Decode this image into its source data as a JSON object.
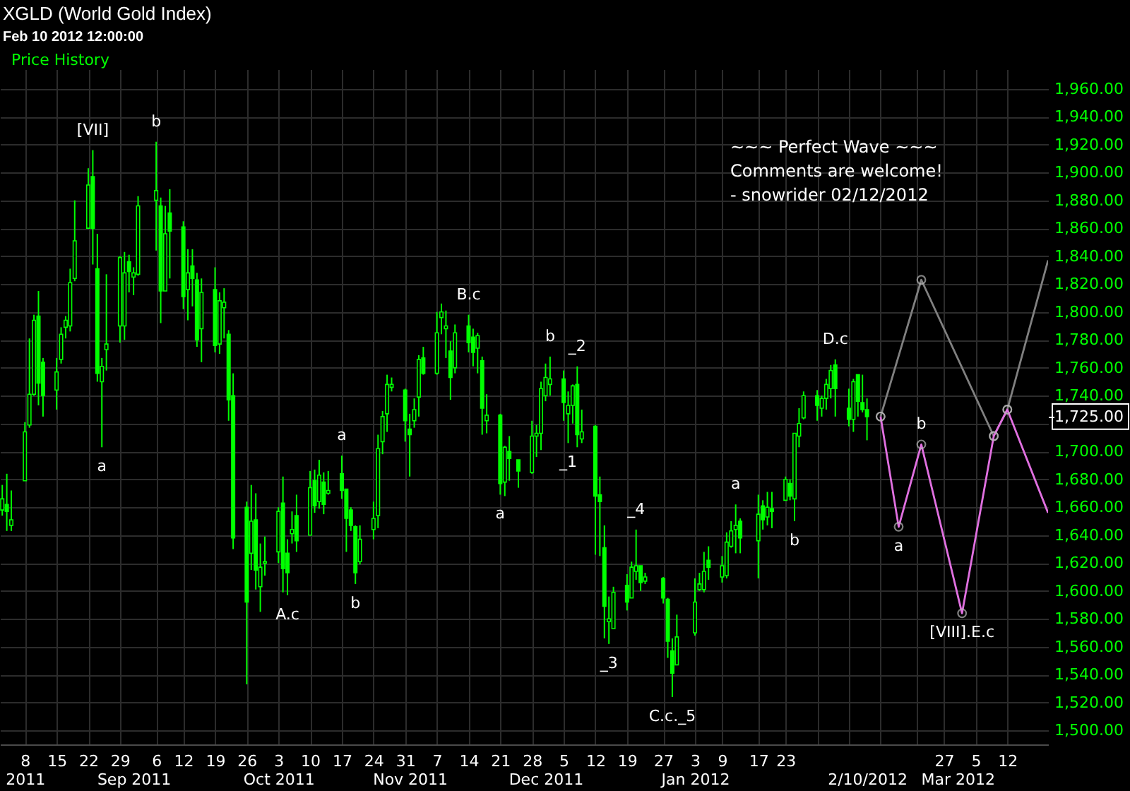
{
  "chart_data": {
    "type": "candlestick",
    "title": "XGLD (World Gold Index)",
    "subtitle": "Feb 10 2012 12:00:00",
    "x": [
      "2011-08-03",
      "2011-08-04",
      "2011-08-05",
      "2011-08-08",
      "2011-08-09",
      "2011-08-10",
      "2011-08-11",
      "2011-08-12",
      "2011-08-15",
      "2011-08-16",
      "2011-08-17",
      "2011-08-18",
      "2011-08-19",
      "2011-08-22",
      "2011-08-23",
      "2011-08-24",
      "2011-08-25",
      "2011-08-26",
      "2011-08-29",
      "2011-08-30",
      "2011-08-31",
      "2011-09-01",
      "2011-09-02",
      "2011-09-06",
      "2011-09-07",
      "2011-09-08",
      "2011-09-09",
      "2011-09-12",
      "2011-09-13",
      "2011-09-14",
      "2011-09-15",
      "2011-09-16",
      "2011-09-19",
      "2011-09-20",
      "2011-09-21",
      "2011-09-22",
      "2011-09-23",
      "2011-09-26",
      "2011-09-27",
      "2011-09-28",
      "2011-09-29",
      "2011-09-30",
      "2011-10-03",
      "2011-10-04",
      "2011-10-05",
      "2011-10-06",
      "2011-10-07",
      "2011-10-10",
      "2011-10-11",
      "2011-10-12",
      "2011-10-13",
      "2011-10-14",
      "2011-10-17",
      "2011-10-18",
      "2011-10-19",
      "2011-10-20",
      "2011-10-21",
      "2011-10-24",
      "2011-10-25",
      "2011-10-26",
      "2011-10-27",
      "2011-10-28",
      "2011-10-31",
      "2011-11-01",
      "2011-11-02",
      "2011-11-03",
      "2011-11-04",
      "2011-11-07",
      "2011-11-08",
      "2011-11-09",
      "2011-11-10",
      "2011-11-11",
      "2011-11-14",
      "2011-11-15",
      "2011-11-16",
      "2011-11-17",
      "2011-11-18",
      "2011-11-21",
      "2011-11-22",
      "2011-11-23",
      "2011-11-25",
      "2011-11-28",
      "2011-11-29",
      "2011-11-30",
      "2011-12-01",
      "2011-12-02",
      "2011-12-05",
      "2011-12-06",
      "2011-12-07",
      "2011-12-08",
      "2011-12-09",
      "2011-12-12",
      "2011-12-13",
      "2011-12-14",
      "2011-12-15",
      "2011-12-16",
      "2011-12-19",
      "2011-12-20",
      "2011-12-21",
      "2011-12-22",
      "2011-12-23",
      "2011-12-27",
      "2011-12-28",
      "2011-12-29",
      "2011-12-30",
      "2012-01-03",
      "2012-01-04",
      "2012-01-05",
      "2012-01-06",
      "2012-01-09",
      "2012-01-10",
      "2012-01-11",
      "2012-01-12",
      "2012-01-13",
      "2012-01-17",
      "2012-01-18",
      "2012-01-19",
      "2012-01-20",
      "2012-01-23",
      "2012-01-24",
      "2012-01-25",
      "2012-01-26",
      "2012-01-27",
      "2012-01-30",
      "2012-01-31",
      "2012-02-01",
      "2012-02-02",
      "2012-02-03",
      "2012-02-06",
      "2012-02-07",
      "2012-02-08",
      "2012-02-09",
      "2012-02-10"
    ],
    "series": [
      {
        "name": "Price History",
        "color": "#00ff00",
        "ohlc": [
          [
            1658,
            1676,
            1654,
            1666
          ],
          [
            1662,
            1684,
            1643,
            1657
          ],
          [
            1647,
            1672,
            1643,
            1651
          ],
          [
            1679,
            1721,
            1679,
            1714
          ],
          [
            1719,
            1781,
            1717,
            1741
          ],
          [
            1741,
            1798,
            1740,
            1794
          ],
          [
            1797,
            1815,
            1733,
            1749
          ],
          [
            1764,
            1767,
            1725,
            1740
          ],
          [
            1744,
            1767,
            1730,
            1757
          ],
          [
            1766,
            1789,
            1763,
            1784
          ],
          [
            1789,
            1797,
            1781,
            1794
          ],
          [
            1790,
            1831,
            1786,
            1821
          ],
          [
            1824,
            1880,
            1822,
            1851
          ],
          [
            1860,
            1903,
            1860,
            1891
          ],
          [
            1897,
            1916,
            1834,
            1860
          ],
          [
            1831,
            1856,
            1750,
            1756
          ],
          [
            1750,
            1767,
            1703,
            1761
          ],
          [
            1773,
            1827,
            1758,
            1777
          ],
          [
            1790,
            1840,
            1778,
            1839
          ],
          [
            1790,
            1843,
            1780,
            1828
          ],
          [
            1836,
            1841,
            1814,
            1829
          ],
          [
            1825,
            1832,
            1812,
            1828
          ],
          [
            1827,
            1883,
            1826,
            1876
          ],
          [
            1880,
            1922,
            1844,
            1887
          ],
          [
            1876,
            1882,
            1792,
            1815
          ],
          [
            1815,
            1876,
            1815,
            1856
          ],
          [
            1871,
            1888,
            1824,
            1858
          ],
          [
            1861,
            1865,
            1802,
            1811
          ],
          [
            1816,
            1845,
            1794,
            1828
          ],
          [
            1833,
            1845,
            1804,
            1824
          ],
          [
            1823,
            1828,
            1775,
            1780
          ],
          [
            1788,
            1824,
            1764,
            1814
          ],
          [
            1816,
            1832,
            1771,
            1776
          ],
          [
            1777,
            1814,
            1770,
            1808
          ],
          [
            1803,
            1817,
            1781,
            1807
          ],
          [
            1784,
            1787,
            1722,
            1737
          ],
          [
            1740,
            1756,
            1630,
            1638
          ],
          [
            1660,
            1664,
            1533,
            1592
          ],
          [
            1627,
            1676,
            1615,
            1650
          ],
          [
            1651,
            1670,
            1601,
            1615
          ],
          [
            1603,
            1634,
            1585,
            1617
          ],
          [
            1620,
            1639,
            1611,
            1621
          ],
          [
            1628,
            1660,
            1620,
            1657
          ],
          [
            1663,
            1682,
            1599,
            1616
          ],
          [
            1627,
            1637,
            1597,
            1613
          ],
          [
            1641,
            1657,
            1634,
            1644
          ],
          [
            1654,
            1669,
            1628,
            1636
          ],
          [
            1640,
            1686,
            1640,
            1674
          ],
          [
            1679,
            1687,
            1656,
            1661
          ],
          [
            1664,
            1694,
            1659,
            1683
          ],
          [
            1678,
            1685,
            1655,
            1662
          ],
          [
            1670,
            1686,
            1669,
            1672
          ],
          [
            1684,
            1697,
            1666,
            1672
          ],
          [
            1673,
            1673,
            1628,
            1652
          ],
          [
            1658,
            1660,
            1643,
            1647
          ],
          [
            1646,
            1647,
            1605,
            1613
          ],
          [
            1621,
            1647,
            1619,
            1637
          ],
          [
            1644,
            1664,
            1637,
            1652
          ],
          [
            1654,
            1712,
            1645,
            1702
          ],
          [
            1707,
            1729,
            1698,
            1725
          ],
          [
            1727,
            1755,
            1714,
            1748
          ],
          [
            1746,
            1753,
            1743,
            1748
          ],
          [
            1744,
            1745,
            1707,
            1722
          ],
          [
            1716,
            1727,
            1682,
            1712
          ],
          [
            1722,
            1738,
            1717,
            1730
          ],
          [
            1739,
            1769,
            1725,
            1766
          ],
          [
            1767,
            1775,
            1755,
            1756
          ],
          [
            1756,
            1800,
            1755,
            1785
          ],
          [
            1796,
            1806,
            1784,
            1800
          ],
          [
            1788,
            1801,
            1767,
            1790
          ],
          [
            1772,
            1779,
            1737,
            1753
          ],
          [
            1760,
            1791,
            1756,
            1785
          ],
          [
            1790,
            1798,
            1771,
            1778
          ],
          [
            1782,
            1788,
            1761,
            1771
          ],
          [
            1774,
            1785,
            1756,
            1783
          ],
          [
            1765,
            1768,
            1712,
            1731
          ],
          [
            1722,
            1741,
            1713,
            1726
          ],
          [
            1726,
            1727,
            1669,
            1677
          ],
          [
            1678,
            1704,
            1668,
            1703
          ],
          [
            1700,
            1711,
            1679,
            1695
          ],
          [
            1694,
            1694,
            1674,
            1686
          ],
          [
            1685,
            1722,
            1684,
            1711
          ],
          [
            1711,
            1719,
            1696,
            1713
          ],
          [
            1713,
            1750,
            1701,
            1745
          ],
          [
            1740,
            1763,
            1736,
            1753
          ],
          [
            1748,
            1768,
            1740,
            1752
          ],
          [
            1752,
            1758,
            1722,
            1735
          ],
          [
            1727,
            1743,
            1706,
            1733
          ],
          [
            1733,
            1748,
            1720,
            1747
          ],
          [
            1748,
            1761,
            1703,
            1712
          ],
          [
            1709,
            1730,
            1706,
            1714
          ],
          [
            1718,
            1719,
            1626,
            1668
          ],
          [
            1669,
            1682,
            1625,
            1664
          ],
          [
            1631,
            1647,
            1566,
            1589
          ],
          [
            1578,
            1596,
            1562,
            1580
          ],
          [
            1573,
            1603,
            1573,
            1599
          ],
          [
            1604,
            1612,
            1586,
            1592
          ],
          [
            1595,
            1621,
            1595,
            1617
          ],
          [
            1614,
            1644,
            1608,
            1618
          ],
          [
            1618,
            1618,
            1600,
            1606
          ],
          [
            1607,
            1613,
            1605,
            1610
          ],
          [
            1609,
            1610,
            1591,
            1595
          ],
          [
            1594,
            1595,
            1552,
            1564
          ],
          [
            1557,
            1566,
            1524,
            1541
          ],
          [
            1547,
            1583,
            1547,
            1567
          ],
          [
            1570,
            1609,
            1568,
            1592
          ],
          [
            1601,
            1613,
            1600,
            1605
          ],
          [
            1601,
            1628,
            1599,
            1614
          ],
          [
            1622,
            1632,
            1608,
            1617
          ],
          [
            1610,
            1625,
            1606,
            1618
          ],
          [
            1611,
            1642,
            1609,
            1635
          ],
          [
            1632,
            1650,
            1631,
            1643
          ],
          [
            1644,
            1662,
            1627,
            1647
          ],
          [
            1650,
            1652,
            1627,
            1638
          ],
          [
            1636,
            1669,
            1609,
            1655
          ],
          [
            1661,
            1665,
            1644,
            1651
          ],
          [
            1653,
            1671,
            1647,
            1660
          ],
          [
            1659,
            1671,
            1645,
            1657
          ],
          [
            1665,
            1682,
            1665,
            1680
          ],
          [
            1677,
            1680,
            1665,
            1668
          ],
          [
            1666,
            1713,
            1650,
            1713
          ],
          [
            1711,
            1731,
            1703,
            1720
          ],
          [
            1724,
            1743,
            1723,
            1740
          ],
          [
            1740,
            1744,
            1722,
            1733
          ],
          [
            1731,
            1740,
            1725,
            1738
          ],
          [
            1738,
            1752,
            1730,
            1748
          ],
          [
            1745,
            1762,
            1738,
            1758
          ],
          [
            1762,
            1766,
            1725,
            1745
          ],
          [
            1731,
            1745,
            1718,
            1723
          ],
          [
            1723,
            1752,
            1714,
            1750
          ],
          [
            1755,
            1755,
            1725,
            1736
          ],
          [
            1735,
            1755,
            1728,
            1730
          ],
          [
            1730,
            1738,
            1708,
            1725
          ]
        ]
      },
      {
        "type": "line",
        "color": "#808080",
        "marker": "circle",
        "x": [
          "2012-02-13",
          "2012-02-22",
          "2012-03-09",
          "2012-03-12",
          "2012-03-21"
        ],
        "values": [
          1725,
          1823,
          1711,
          1730,
          1837
        ]
      },
      {
        "type": "line",
        "color": "#e070e0",
        "marker": "circle",
        "x": [
          "2012-02-13",
          "2012-02-17",
          "2012-02-22",
          "2012-03-02",
          "2012-03-09",
          "2012-03-12",
          "2012-03-21"
        ],
        "values": [
          1725,
          1646,
          1705,
          1584,
          1711,
          1730,
          1656
        ]
      }
    ],
    "xlim": [
      "2011-08-02T12:00",
      "2012-03-21"
    ],
    "xticks": [
      {
        "value": "2011-08-08",
        "label": "8"
      },
      {
        "value": "2011-08-15",
        "label": "15"
      },
      {
        "value": "2011-08-22",
        "label": "22"
      },
      {
        "value": "2011-08-29",
        "label": "29"
      },
      {
        "value": "2011-09-06",
        "label": "6"
      },
      {
        "value": "2011-09-12",
        "label": "12"
      },
      {
        "value": "2011-09-19",
        "label": "19"
      },
      {
        "value": "2011-09-26",
        "label": "26"
      },
      {
        "value": "2011-10-03",
        "label": "3"
      },
      {
        "value": "2011-10-10",
        "label": "10"
      },
      {
        "value": "2011-10-17",
        "label": "17"
      },
      {
        "value": "2011-10-24",
        "label": "24"
      },
      {
        "value": "2011-10-31",
        "label": "31"
      },
      {
        "value": "2011-11-07",
        "label": "7"
      },
      {
        "value": "2011-11-14",
        "label": "14"
      },
      {
        "value": "2011-11-21",
        "label": "21"
      },
      {
        "value": "2011-11-28",
        "label": "28"
      },
      {
        "value": "2011-12-05",
        "label": "5"
      },
      {
        "value": "2011-12-12",
        "label": "12"
      },
      {
        "value": "2011-12-19",
        "label": "19"
      },
      {
        "value": "2011-12-27",
        "label": "27"
      },
      {
        "value": "2012-01-03",
        "label": "3"
      },
      {
        "value": "2012-01-09",
        "label": "9"
      },
      {
        "value": "2012-01-17",
        "label": "17"
      },
      {
        "value": "2012-01-23",
        "label": "23"
      },
      {
        "value": "2012-01-30",
        "label": null
      },
      {
        "value": "2012-02-06",
        "label": null
      },
      {
        "value": "2012-02-13",
        "label": null
      },
      {
        "value": "2012-02-21",
        "label": null
      },
      {
        "value": "2012-02-27",
        "label": "27"
      },
      {
        "value": "2012-03-05",
        "label": "5"
      },
      {
        "value": "2012-03-12",
        "label": "12"
      }
    ],
    "x2lim": [
      "2011-08-02T12:00",
      "2012-03-21"
    ],
    "x2ticks": [
      {
        "value": "2011-08-08",
        "label": "2011"
      },
      {
        "value": "2011-09-01",
        "label": "Sep 2011"
      },
      {
        "value": "2011-10-03",
        "label": "Oct 2011"
      },
      {
        "value": "2011-11-01",
        "label": "Nov 2011"
      },
      {
        "value": "2011-12-01",
        "label": "Dec 2011"
      },
      {
        "value": "2012-01-03",
        "label": "Jan 2012"
      },
      {
        "value": "2012-02-10",
        "label": "2/10/2012"
      },
      {
        "value": "2012-03-01",
        "label": "Mar 2012"
      }
    ],
    "ylim": [
      1490,
      1974
    ],
    "yticks": [
      {
        "value": 1500,
        "label": "1,500.00"
      },
      {
        "value": 1520,
        "label": "1,520.00"
      },
      {
        "value": 1540,
        "label": "1,540.00"
      },
      {
        "value": 1560,
        "label": "1,560.00"
      },
      {
        "value": 1580,
        "label": "1,580.00"
      },
      {
        "value": 1600,
        "label": "1,600.00"
      },
      {
        "value": 1620,
        "label": "1,620.00"
      },
      {
        "value": 1640,
        "label": "1,640.00"
      },
      {
        "value": 1660,
        "label": "1,660.00"
      },
      {
        "value": 1680,
        "label": "1,680.00"
      },
      {
        "value": 1700,
        "label": "1,700.00"
      },
      {
        "value": 1720,
        "label": null
      },
      {
        "value": 1725,
        "label": "1,725.00"
      },
      {
        "value": 1740,
        "label": "1,740.00"
      },
      {
        "value": 1760,
        "label": "1,760.00"
      },
      {
        "value": 1780,
        "label": "1,780.00"
      },
      {
        "value": 1800,
        "label": "1,800.00"
      },
      {
        "value": 1820,
        "label": "1,820.00"
      },
      {
        "value": 1840,
        "label": "1,840.00"
      },
      {
        "value": 1860,
        "label": "1,860.00"
      },
      {
        "value": 1880,
        "label": "1,880.00"
      },
      {
        "value": 1900,
        "label": "1,900.00"
      },
      {
        "value": 1920,
        "label": "1,920.00"
      },
      {
        "value": 1940,
        "label": "1,940.00"
      },
      {
        "value": 1960,
        "label": "1,960.00"
      }
    ],
    "grid": true,
    "annotations": [
      {
        "text": "[VII]",
        "x": "2011-08-23",
        "y": 1916
      },
      {
        "text": "b",
        "x": "2011-09-06",
        "y": 1922
      },
      {
        "text": "a",
        "x": "2011-08-25",
        "y": 1703
      },
      {
        "text": "A.c",
        "x": "2011-10-05",
        "y": 1597
      },
      {
        "text": "a",
        "x": "2011-10-17",
        "y": 1697
      },
      {
        "text": "b",
        "x": "2011-10-20",
        "y": 1605
      },
      {
        "text": "B.c",
        "x": "2011-11-14",
        "y": 1798
      },
      {
        "text": "a",
        "x": "2011-11-21",
        "y": 1669
      },
      {
        "text": "b",
        "x": "2011-12-02",
        "y": 1768
      },
      {
        "text": "_2",
        "x": "2011-12-08",
        "y": 1761
      },
      {
        "text": "_1",
        "x": "2011-12-06",
        "y": 1706
      },
      {
        "text": "_3",
        "x": "2011-12-15",
        "y": 1562
      },
      {
        "text": "_4",
        "x": "2011-12-21",
        "y": 1644
      },
      {
        "text": "C.c._5",
        "x": "2011-12-29",
        "y": 1524
      },
      {
        "text": "a",
        "x": "2012-01-12",
        "y": 1662
      },
      {
        "text": "b",
        "x": "2012-01-25",
        "y": 1650
      },
      {
        "text": "D.c",
        "x": "2012-02-03",
        "y": 1766
      },
      {
        "text": "a",
        "x": "2012-02-17",
        "y": 1646
      },
      {
        "text": "b",
        "x": "2012-02-22",
        "y": 1705
      },
      {
        "text": "[VIII].E.c",
        "x": "2012-03-02",
        "y": 1584
      },
      "~~~ Perfect Wave ~~~",
      "Comments are welcome!",
      "- snowrider  02/12/2012"
    ]
  }
}
